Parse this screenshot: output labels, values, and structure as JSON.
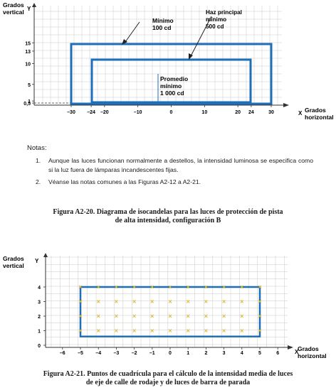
{
  "figure1": {
    "ylabel": "Grados\nvertical",
    "yaxis_letter": "Y",
    "xaxis_letter": "X",
    "xlabel": "Grados\nhorizontal",
    "y_ticks": [
      "15",
      "13",
      "10",
      "5",
      "1",
      "0,5"
    ],
    "x_ticks": [
      "–30",
      "–24",
      "–20",
      "–10",
      "0",
      "10",
      "20",
      "24",
      "30"
    ],
    "label_minimo": "Mínimo\n100 cd",
    "label_haz": "Haz principal\nmínimo\n500 cd",
    "label_promedio": "Promedio\nmínimo\n1 000 cd",
    "colors": {
      "outline": "#1f6fb8",
      "grid": "#c9c9c9"
    }
  },
  "notes": {
    "title": "Notas:",
    "items": [
      {
        "num": "1.",
        "text": "Aunque las luces funcionan normalmente a destellos, la intensidad luminosa se especifica como si la luz fuera de lámparas incandescentes fijas."
      },
      {
        "num": "2.",
        "text": "Véanse las notas comunes a las Figuras A2-12 a A2-21."
      }
    ]
  },
  "caption1": "Figura A2-20.    Diagrama de isocandelas para las luces de protección de pista\nde alta intensidad, configuración B",
  "figure2": {
    "ylabel": "Grados\nvertical",
    "yaxis_letter": "Y",
    "xaxis_letter": "X",
    "xlabel": "Grados\nhorizontal",
    "y_ticks": [
      "4",
      "3",
      "2",
      "1",
      "0"
    ],
    "x_ticks": [
      "–6",
      "–5",
      "–4",
      "–3",
      "–2",
      "–1",
      "0",
      "1",
      "2",
      "3",
      "4",
      "5",
      "6"
    ],
    "grid_points_x": [
      -5,
      -4,
      -3,
      -2,
      -1,
      0,
      1,
      2,
      3,
      4,
      5
    ],
    "grid_points_y": [
      1,
      2,
      3,
      4
    ],
    "colors": {
      "outline": "#1f6fb8",
      "marker": "#e0b830",
      "grid": "#c9c9c9"
    }
  },
  "caption2": "Figura A2-21.    Puntos de cuadrícula para el cálculo de la intensidad media de luces\nde eje de calle de rodaje y de luces de barra de parada"
}
